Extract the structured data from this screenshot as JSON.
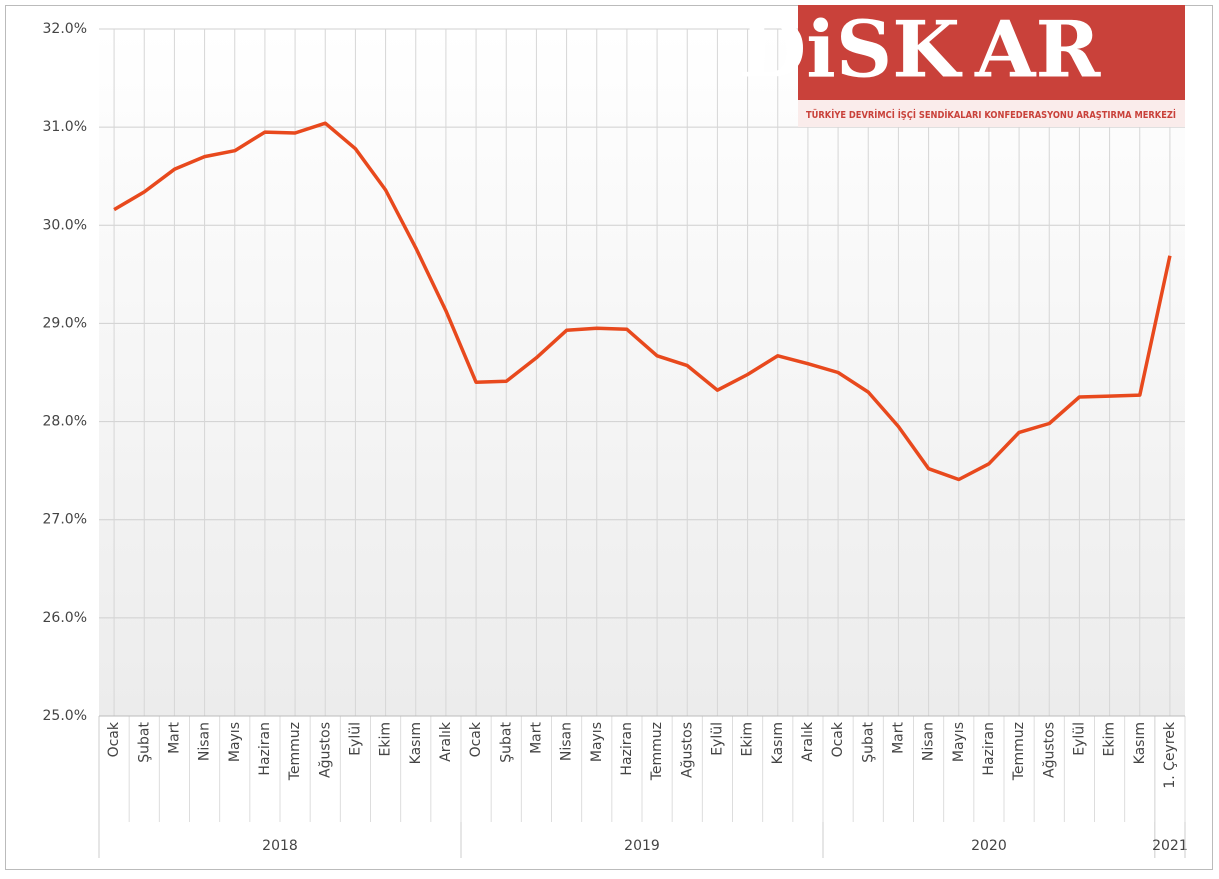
{
  "chart_data": {
    "type": "line",
    "logo": {
      "name_left": "DiSK",
      "name_right": "AR",
      "tagline": "TÜRKİYE DEVRİMCİ İŞÇİ SENDİKALARI KONFEDERASYONU ARAŞTIRMA MERKEZİ"
    },
    "category_groups": [
      {
        "label": "2018",
        "categories": [
          "Ocak",
          "Şubat",
          "Mart",
          "Nisan",
          "Mayıs",
          "Haziran",
          "Temmuz",
          "Ağustos",
          "Eylül",
          "Ekim",
          "Kasım",
          "Aralık"
        ]
      },
      {
        "label": "2019",
        "categories": [
          "Ocak",
          "Şubat",
          "Mart",
          "Nisan",
          "Mayıs",
          "Haziran",
          "Temmuz",
          "Ağustos",
          "Eylül",
          "Ekim",
          "Kasım",
          "Aralık"
        ]
      },
      {
        "label": "2020",
        "categories": [
          "Ocak",
          "Şubat",
          "Mart",
          "Nisan",
          "Mayıs",
          "Haziran",
          "Temmuz",
          "Ağustos",
          "Eylül",
          "Ekim",
          "Kasım"
        ]
      },
      {
        "label": "2021",
        "categories": [
          "1. Çeyrek"
        ]
      }
    ],
    "series": [
      {
        "color": "#e8491d",
        "values": [
          30.16,
          30.34,
          30.57,
          30.7,
          30.76,
          30.95,
          30.94,
          31.04,
          30.78,
          30.36,
          29.77,
          29.13,
          28.4,
          28.41,
          28.65,
          28.93,
          28.95,
          28.94,
          28.67,
          28.57,
          28.32,
          28.48,
          28.67,
          28.59,
          28.5,
          28.3,
          27.95,
          27.52,
          27.41,
          27.57,
          27.89,
          27.98,
          28.25,
          28.26,
          28.27,
          29.69
        ]
      }
    ],
    "ylim": [
      25,
      32
    ],
    "yticks": [
      {
        "value": 25,
        "label": "25.0%"
      },
      {
        "value": 26,
        "label": "26.0%"
      },
      {
        "value": 27,
        "label": "27.0%"
      },
      {
        "value": 28,
        "label": "28.0%"
      },
      {
        "value": 29,
        "label": "29.0%"
      },
      {
        "value": 30,
        "label": "30.0%"
      },
      {
        "value": 31,
        "label": "31.0%"
      },
      {
        "value": 32,
        "label": "32.0%"
      }
    ],
    "grid": true
  }
}
